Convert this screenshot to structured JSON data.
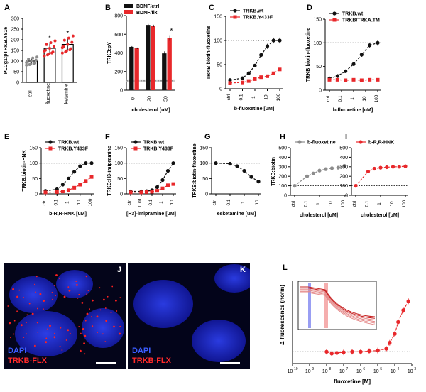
{
  "colors": {
    "black": "#111111",
    "red": "#e8282b",
    "grey": "#8c8c8c",
    "dapi": "#1f2ed8"
  },
  "panels": [
    {
      "id": "A",
      "label": "A"
    },
    {
      "id": "B",
      "label": "B"
    },
    {
      "id": "C",
      "label": "C"
    },
    {
      "id": "D",
      "label": "D"
    },
    {
      "id": "E",
      "label": "E"
    },
    {
      "id": "F",
      "label": "F"
    },
    {
      "id": "G",
      "label": "G"
    },
    {
      "id": "H",
      "label": "H"
    },
    {
      "id": "I",
      "label": "I"
    },
    {
      "id": "J",
      "label": "J"
    },
    {
      "id": "K",
      "label": "K"
    },
    {
      "id": "L",
      "label": "L"
    }
  ],
  "microscopy": {
    "J": {
      "dapi_label": "DAPI",
      "marker_label": "TRKB-FLX"
    },
    "K": {
      "dapi_label": "DAPI",
      "marker_label": "TRKB-FLX"
    }
  },
  "chart_data": [
    {
      "panel": "A",
      "type": "bar",
      "ylabel": "PLCg1:pTRKB.Y816",
      "categories": [
        "ctrl",
        "fluoxetine",
        "ketamine"
      ],
      "ylim": [
        0,
        300
      ],
      "yticks": [
        0,
        50,
        100,
        150,
        200,
        250,
        300
      ],
      "values": [
        100,
        160,
        178
      ],
      "errors": [
        12,
        22,
        25
      ],
      "significance": [
        "",
        "*",
        "*"
      ]
    },
    {
      "panel": "B",
      "type": "bar",
      "ylabel": "TRKB:pY",
      "xlabel": "cholesterol [uM]",
      "categories": [
        "0",
        "20",
        "50"
      ],
      "ylim": [
        0,
        800
      ],
      "yticks": [
        0,
        200,
        400,
        600,
        800
      ],
      "legend": {
        "position": "top",
        "entries": [
          "BDNF/ctrl",
          "BDNF/flx"
        ]
      },
      "series": [
        {
          "name": "BDNF/ctrl",
          "values": [
            465,
            700,
            395
          ],
          "errors": [
            8,
            10,
            22
          ]
        },
        {
          "name": "BDNF/flx",
          "values": [
            450,
            690,
            560
          ],
          "errors": [
            8,
            12,
            30
          ]
        }
      ],
      "baseline": 100,
      "significance": [
        "",
        "",
        "*"
      ]
    },
    {
      "panel": "C",
      "type": "line",
      "ylabel": "TRKB:biotin-fluoxetine",
      "xlabel": "b-fluoxetine [uM]",
      "xticks": [
        "ctrl",
        "0.1",
        "1",
        "10",
        "100"
      ],
      "ylim": [
        0,
        150
      ],
      "yticks": [
        0,
        50,
        100,
        150
      ],
      "reference_line": 100,
      "legend": {
        "position": "top-left",
        "entries": [
          "TRKB.wt",
          "TRKB.Y433F"
        ]
      },
      "series": [
        {
          "name": "TRKB.wt",
          "x": [
            -2,
            -1,
            -0.5,
            0,
            0.5,
            1,
            1.5,
            2
          ],
          "y": [
            18,
            22,
            32,
            48,
            70,
            88,
            100,
            100
          ]
        },
        {
          "name": "TRKB.Y433F",
          "x": [
            -2,
            -1,
            -0.5,
            0,
            0.5,
            1,
            1.5,
            2
          ],
          "y": [
            12,
            13,
            16,
            20,
            24,
            26,
            32,
            40
          ]
        }
      ]
    },
    {
      "panel": "D",
      "type": "line",
      "ylabel": "TRKB:biotin-fluoxetine",
      "xlabel": "b-fluoxetine [uM]",
      "xticks": [
        "ctrl",
        "0.1",
        "1",
        "10",
        "100"
      ],
      "ylim": [
        0,
        150
      ],
      "yticks": [
        0,
        50,
        100,
        150
      ],
      "reference_line": 100,
      "legend": {
        "position": "top-left",
        "entries": [
          "TRKB.wt",
          "TRKB/TRKA.TM"
        ]
      },
      "series": [
        {
          "name": "TRKB.wt",
          "x": [
            -1.5,
            -1,
            -0.5,
            0,
            0.5,
            1,
            1.5
          ],
          "y": [
            25,
            30,
            40,
            55,
            75,
            95,
            100
          ]
        },
        {
          "name": "TRKB/TRKA.TM",
          "x": [
            -1.5,
            -1,
            -0.5,
            0,
            0.5,
            1,
            1.5
          ],
          "y": [
            22,
            22,
            21,
            22,
            21,
            22,
            22
          ]
        }
      ]
    },
    {
      "panel": "E",
      "type": "line",
      "ylabel": "TRKB:biotin-HNK",
      "xlabel": "b-R,R-HNK [uM]",
      "xticks": [
        "ctrl",
        "0.1",
        "1",
        "10",
        "100"
      ],
      "ylim": [
        0,
        150
      ],
      "yticks": [
        0,
        50,
        100,
        150
      ],
      "reference_line": 100,
      "legend": {
        "position": "top-left",
        "entries": [
          "TRKB.wt",
          "TRKB.Y433F"
        ]
      },
      "series": [
        {
          "name": "TRKB.wt",
          "x": [
            -2,
            -1,
            -0.5,
            0,
            0.5,
            1,
            1.5,
            2
          ],
          "y": [
            10,
            15,
            30,
            50,
            72,
            90,
            100,
            100
          ]
        },
        {
          "name": "TRKB.Y433F",
          "x": [
            -2,
            -1,
            -0.5,
            0,
            0.5,
            1,
            1.5,
            2
          ],
          "y": [
            5,
            6,
            8,
            12,
            20,
            30,
            42,
            55
          ]
        }
      ]
    },
    {
      "panel": "F",
      "type": "line",
      "ylabel": "TRKB:H3-imipramine",
      "xlabel": "[H3]-imipramine [uM]",
      "xticks": [
        "ctrl",
        "0.01",
        "0.1",
        "1",
        "10"
      ],
      "ylim": [
        0,
        150
      ],
      "yticks": [
        0,
        50,
        100,
        150
      ],
      "reference_line": 100,
      "legend": {
        "position": "top-left",
        "entries": [
          "TRKB.wt",
          "TRKB.Y433F"
        ]
      },
      "series": [
        {
          "name": "TRKB.wt",
          "x": [
            -3,
            -2,
            -1.5,
            -1,
            -0.5,
            0,
            0.5,
            1
          ],
          "y": [
            8,
            8,
            9,
            12,
            22,
            45,
            75,
            100
          ]
        },
        {
          "name": "TRKB.Y433F",
          "x": [
            -3,
            -2,
            -1.5,
            -1,
            -0.5,
            0,
            0.5,
            1
          ],
          "y": [
            5,
            5,
            6,
            7,
            10,
            18,
            28,
            32
          ]
        }
      ]
    },
    {
      "panel": "G",
      "type": "line",
      "ylabel": "TRKB:biotin-fluoxetine",
      "xlabel": "esketamine [uM]",
      "xticks": [
        "ctrl",
        "0.1",
        "1",
        "10"
      ],
      "ylim": [
        0,
        150
      ],
      "yticks": [
        0,
        50,
        100,
        150
      ],
      "reference_line": 100,
      "series": [
        {
          "name": "",
          "x": [
            -2,
            -1,
            -0.5,
            0,
            0.5,
            1
          ],
          "y": [
            100,
            98,
            90,
            75,
            55,
            40
          ]
        }
      ]
    },
    {
      "panel": "H",
      "type": "line",
      "ylabel": "TRKB:biotin",
      "xlabel": "cholesterol [uM]",
      "xticks": [
        "ctrl",
        "0.1",
        "1",
        "10",
        "100"
      ],
      "ylim": [
        0,
        500
      ],
      "yticks": [
        0,
        100,
        200,
        300,
        400,
        500
      ],
      "reference_line": 100,
      "legend": {
        "position": "top",
        "entries": [
          "b-fluoxetine"
        ]
      },
      "series": [
        {
          "name": "b-fluoxetine",
          "x": [
            -2,
            -1,
            -0.5,
            0,
            0.5,
            1,
            1.5,
            2
          ],
          "y": [
            100,
            200,
            230,
            260,
            275,
            285,
            290,
            310
          ]
        }
      ]
    },
    {
      "panel": "I",
      "type": "line",
      "xlabel": "cholesterol [uM]",
      "xticks": [
        "ctrl",
        "0.1",
        "1",
        "10",
        "100"
      ],
      "ylim": [
        0,
        500
      ],
      "yticks": [
        0,
        100,
        200,
        300,
        400,
        500
      ],
      "reference_line": 100,
      "legend": {
        "position": "top",
        "entries": [
          "b-R,R-HNK"
        ]
      },
      "series": [
        {
          "name": "b-R,R-HNK",
          "x": [
            -2,
            -1,
            -0.5,
            0,
            0.5,
            1,
            1.5,
            2
          ],
          "y": [
            100,
            250,
            280,
            290,
            295,
            300,
            300,
            305
          ]
        }
      ]
    },
    {
      "panel": "L",
      "type": "scatter",
      "ylabel": "Δ fluorescence (norm)",
      "xlabel": "fluoxetine [M]",
      "xscale": "log",
      "xlim": [
        -10,
        -3
      ],
      "xticks": [
        -10,
        -9,
        -8,
        -7,
        -6,
        -5,
        -4,
        -3
      ],
      "ylim": [
        -0.2,
        1.2
      ],
      "reference_line": 0,
      "series": [
        {
          "name": "",
          "x": [
            -8,
            -7.7,
            -7.4,
            -7,
            -6.5,
            -6,
            -5.5,
            -5,
            -4.5,
            -4.3,
            -4,
            -3.8,
            -3.5,
            -3.2
          ],
          "y": [
            0.0,
            -0.03,
            -0.02,
            -0.01,
            0.0,
            0.0,
            0.01,
            0.02,
            0.05,
            0.15,
            0.3,
            0.5,
            0.7,
            0.85
          ]
        }
      ],
      "inset": {
        "description_lines": 6,
        "shaded_bands": [
          "blue",
          "red"
        ]
      }
    }
  ]
}
